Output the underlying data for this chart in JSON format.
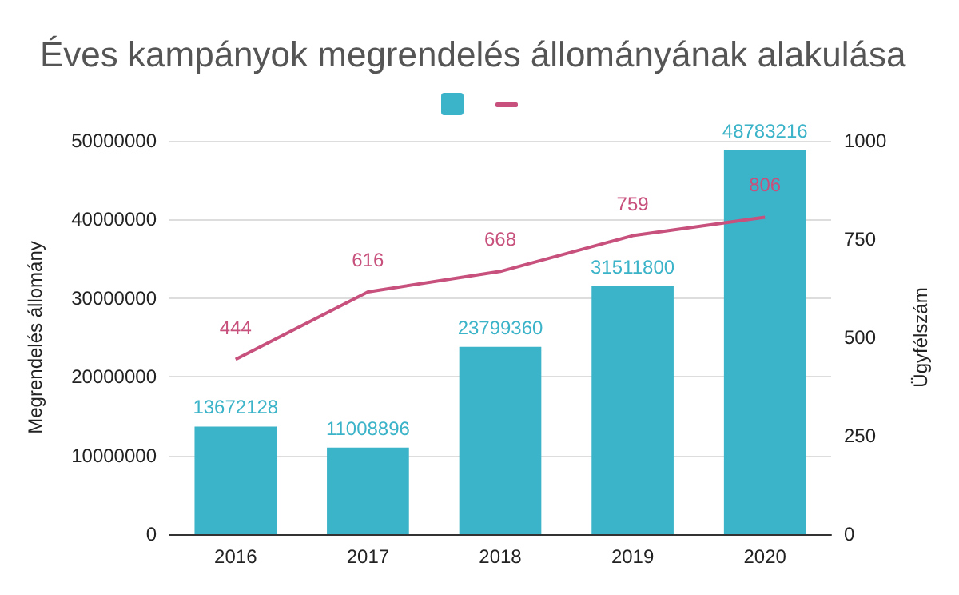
{
  "chart_data": {
    "type": "bar",
    "title": "Éves kampányok megrendelés állományának alakulása",
    "ylabel": "Megrendelés állomány",
    "y2label": "Ügyfélszám",
    "categories": [
      "2016",
      "2017",
      "2018",
      "2019",
      "2020"
    ],
    "series": [
      {
        "color": "#3bb3c8",
        "values": [
          13672128,
          11008896,
          23799360,
          31511800,
          48783216
        ]
      },
      {
        "type": "line",
        "axis": "y2",
        "color": "#c7517c",
        "values": [
          444,
          616,
          668,
          759,
          806
        ]
      }
    ],
    "ylim": [
      0,
      50000000
    ],
    "yticks": [
      0,
      10000000,
      20000000,
      30000000,
      40000000,
      50000000
    ],
    "y2lim": [
      0,
      1000
    ],
    "y2ticks": [
      0,
      250,
      500,
      750,
      1000
    ],
    "grid": "y",
    "data_labels": true,
    "marker": "none",
    "line_style": "solid"
  }
}
